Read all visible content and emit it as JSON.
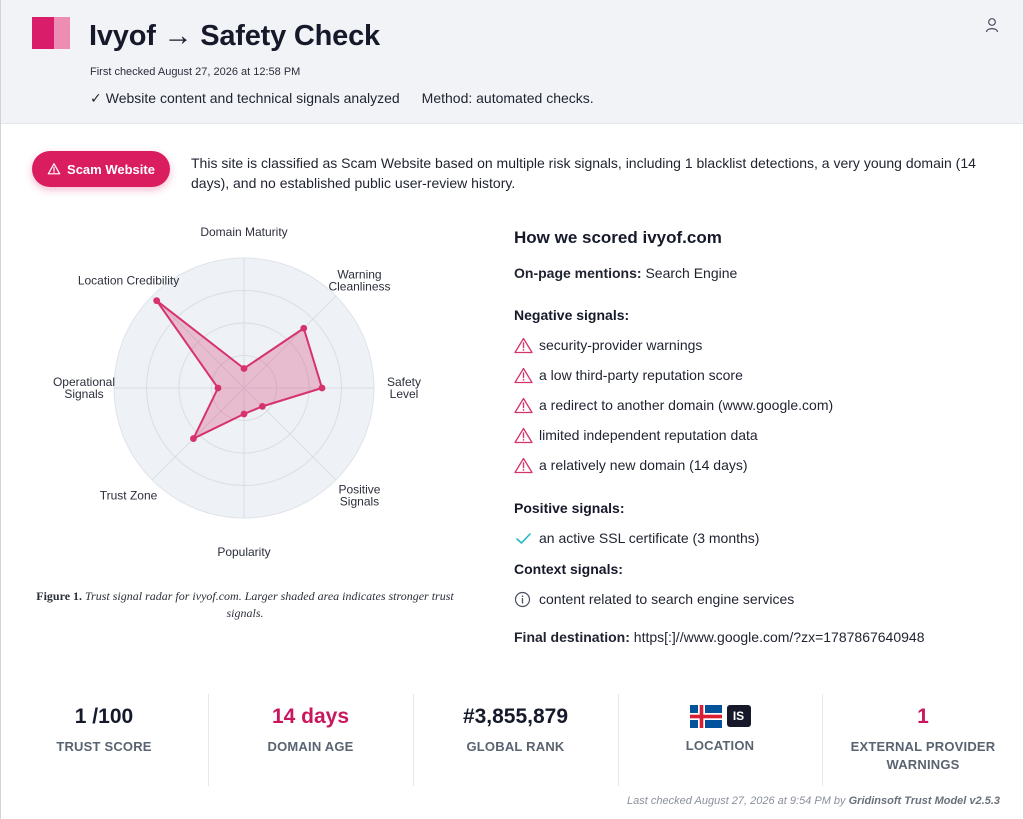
{
  "header": {
    "title": "Ivyof → Safety Check",
    "first_checked": "First checked August 27, 2026 at 12:58 PM",
    "analyzed": "Website content and technical signals analyzed",
    "method": "Method: automated checks."
  },
  "verdict": {
    "label": "Scam Website",
    "summary": "This site is classified as Scam Website based on multiple risk signals, including 1 blacklist detections, a very young domain (14 days), and no established public user-review history."
  },
  "chart_data": {
    "type": "radar",
    "axes": [
      "Domain Maturity",
      "Warning Cleanliness",
      "Safety Level",
      "Positive Signals",
      "Popularity",
      "Trust Zone",
      "Operational Signals",
      "Location Credibility"
    ],
    "axis_labels_display": [
      [
        "Domain Maturity"
      ],
      [
        "Warning",
        "Cleanliness"
      ],
      [
        "Safety",
        "Level"
      ],
      [
        "Positive",
        "Signals"
      ],
      [
        "Popularity"
      ],
      [
        "Trust Zone"
      ],
      [
        "Operational",
        "Signals"
      ],
      [
        "Location Credibility"
      ]
    ],
    "values": [
      0.15,
      0.65,
      0.6,
      0.2,
      0.2,
      0.55,
      0.2,
      0.95
    ],
    "range": [
      0,
      1
    ],
    "rings": 4,
    "color": "#d6336c",
    "fill": "#d6336c"
  },
  "caption": {
    "label": "Figure 1.",
    "text": "Trust signal radar for ivyof.com. Larger shaded area indicates stronger trust signals."
  },
  "scoring": {
    "title": "How we scored ivyof.com",
    "onpage_label": "On-page mentions:",
    "onpage_value": "Search Engine",
    "negative_title": "Negative signals:",
    "negative": [
      "security-provider warnings",
      "a low third-party reputation score",
      "a redirect to another domain (www.google.com)",
      "limited independent reputation data",
      "a relatively new domain (14 days)"
    ],
    "positive_title": "Positive signals:",
    "positive": [
      "an active SSL certificate (3 months)"
    ],
    "context_title": "Context signals:",
    "context": [
      "content related to search engine services"
    ],
    "final_label": "Final destination:",
    "final_value": "https[:]//www.google.com/?zx=1787867640948"
  },
  "stats": {
    "trust_score": {
      "value": "1 /100",
      "label": "TRUST SCORE"
    },
    "domain_age": {
      "value": "14 days",
      "label": "DOMAIN AGE"
    },
    "global_rank": {
      "value": "#3,855,879",
      "label": "GLOBAL RANK"
    },
    "location": {
      "code": "IS",
      "label": "LOCATION",
      "flag": "iceland-flag"
    },
    "warnings": {
      "value": "1",
      "label_line1": "EXTERNAL PROVIDER",
      "label_line2": "WARNINGS"
    }
  },
  "footer": {
    "text": "Last checked August 27, 2026 at 9:54 PM by",
    "model": "Gridinsoft Trust Model v2.5.3"
  },
  "colors": {
    "accent": "#d91d5f",
    "header_bg": "#f1f3f7",
    "warning": "#d6336c",
    "positive": "#22b8c6"
  }
}
